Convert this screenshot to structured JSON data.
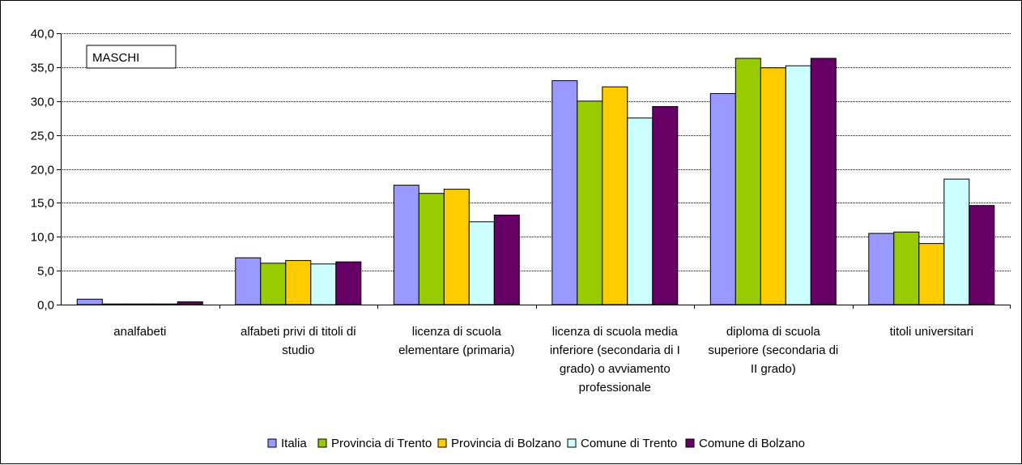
{
  "chart_data": {
    "type": "bar",
    "title": "",
    "annotation": "MASCHI",
    "xlabel": "",
    "ylabel": "",
    "ylim": [
      0,
      40
    ],
    "ytick_step": 5,
    "ytick_labels": [
      "0,0",
      "5,0",
      "10,0",
      "15,0",
      "20,0",
      "25,0",
      "30,0",
      "35,0",
      "40,0"
    ],
    "grid": true,
    "legend_position": "bottom",
    "categories": [
      [
        "analfabeti"
      ],
      [
        "alfabeti privi di titoli di",
        "studio"
      ],
      [
        "licenza di scuola",
        "elementare (primaria)"
      ],
      [
        "licenza di scuola media",
        "inferiore (secondaria di I",
        "grado) o avviamento",
        "professionale"
      ],
      [
        "diploma di scuola",
        "superiore (secondaria di",
        "II grado)"
      ],
      [
        "titoli universitari"
      ]
    ],
    "series": [
      {
        "name": "Italia",
        "color": "#9999ff",
        "values": [
          0.8,
          6.9,
          17.6,
          33.0,
          31.1,
          10.5
        ]
      },
      {
        "name": "Provincia di Trento",
        "color": "#99cc00",
        "values": [
          0.1,
          6.1,
          16.4,
          30.0,
          36.3,
          10.7
        ]
      },
      {
        "name": "Provincia di Bolzano",
        "color": "#ffcc00",
        "values": [
          0.1,
          6.5,
          17.0,
          32.1,
          34.9,
          9.0
        ]
      },
      {
        "name": "Comune di Trento",
        "color": "#ccffff",
        "values": [
          0.1,
          6.0,
          12.2,
          27.5,
          35.2,
          18.5
        ]
      },
      {
        "name": "Comune di Bolzano",
        "color": "#660066",
        "values": [
          0.4,
          6.3,
          13.2,
          29.2,
          36.3,
          14.6
        ]
      }
    ]
  }
}
